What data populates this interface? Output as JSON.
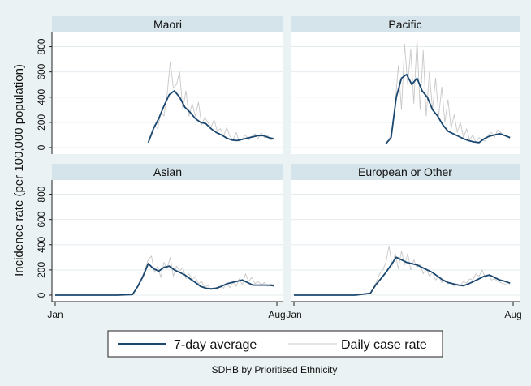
{
  "chart_data": {
    "type": "line",
    "ylabel": "Incidence rate (per 100,000 population)",
    "note": "SDHB by Prioritised Ethnicity",
    "x_ticks": [
      "Jan",
      "Aug"
    ],
    "y_ticks": [
      0,
      200,
      400,
      600,
      800
    ],
    "ylim": [
      0,
      900
    ],
    "grid": true,
    "legend": {
      "placement": "bottom",
      "entries": [
        {
          "label": "7-day average",
          "color": "#1a476f",
          "style": "thick"
        },
        {
          "label": "Daily case rate",
          "color": "#c8c8c8",
          "style": "thin"
        }
      ]
    },
    "x_unit": "day of year",
    "x_range": [
      1,
      213
    ],
    "panels": [
      {
        "title": "Maori",
        "series": [
          {
            "name": "7-day average",
            "x": [
              90,
              95,
              100,
              105,
              110,
              115,
              120,
              125,
              130,
              135,
              140,
              145,
              150,
              155,
              160,
              165,
              170,
              175,
              180,
              185,
              190,
              195,
              200,
              205,
              210
            ],
            "values": [
              40,
              150,
              230,
              330,
              420,
              450,
              400,
              320,
              280,
              230,
              200,
              190,
              150,
              120,
              100,
              75,
              60,
              55,
              65,
              75,
              85,
              95,
              95,
              80,
              70
            ]
          },
          {
            "name": "Daily case rate",
            "x": [
              90,
              93,
              96,
              99,
              102,
              105,
              108,
              111,
              114,
              117,
              120,
              123,
              126,
              129,
              132,
              135,
              138,
              141,
              144,
              147,
              150,
              153,
              156,
              159,
              162,
              165,
              168,
              171,
              174,
              177,
              180,
              183,
              186,
              189,
              192,
              195,
              198,
              201,
              204,
              207,
              210
            ],
            "values": [
              60,
              90,
              180,
              150,
              280,
              250,
              420,
              680,
              470,
              500,
              600,
              300,
              450,
              250,
              350,
              250,
              360,
              180,
              240,
              200,
              160,
              220,
              130,
              150,
              90,
              160,
              90,
              60,
              120,
              50,
              70,
              100,
              60,
              90,
              110,
              70,
              120,
              80,
              100,
              60,
              70
            ]
          }
        ]
      },
      {
        "title": "Pacific",
        "series": [
          {
            "name": "7-day average",
            "x": [
              90,
              95,
              100,
              105,
              110,
              115,
              120,
              125,
              130,
              135,
              140,
              145,
              150,
              155,
              160,
              165,
              170,
              175,
              180,
              185,
              190,
              195,
              200,
              205,
              210
            ],
            "values": [
              30,
              80,
              400,
              550,
              580,
              500,
              550,
              450,
              400,
              300,
              250,
              180,
              130,
              110,
              90,
              70,
              55,
              45,
              40,
              70,
              90,
              100,
              110,
              95,
              80
            ]
          },
          {
            "name": "Daily case rate",
            "x": [
              90,
              93,
              96,
              99,
              102,
              105,
              108,
              111,
              114,
              117,
              120,
              123,
              126,
              129,
              132,
              135,
              138,
              141,
              144,
              147,
              150,
              153,
              156,
              159,
              162,
              165,
              168,
              171,
              174,
              177,
              180,
              183,
              186,
              189,
              192,
              195,
              198,
              201,
              204,
              207,
              210
            ],
            "values": [
              40,
              60,
              150,
              350,
              650,
              300,
              820,
              500,
              780,
              350,
              860,
              300,
              770,
              250,
              600,
              300,
              550,
              250,
              480,
              200,
              380,
              150,
              260,
              120,
              200,
              80,
              150,
              60,
              100,
              40,
              80,
              60,
              50,
              100,
              120,
              80,
              140,
              120,
              100,
              90,
              70
            ]
          }
        ]
      },
      {
        "title": "Asian",
        "series": [
          {
            "name": "7-day average",
            "x": [
              1,
              30,
              60,
              75,
              80,
              85,
              90,
              95,
              100,
              105,
              110,
              115,
              120,
              125,
              130,
              135,
              140,
              145,
              150,
              155,
              160,
              165,
              170,
              175,
              180,
              185,
              190,
              195,
              200,
              205,
              210
            ],
            "values": [
              0,
              0,
              0,
              5,
              70,
              150,
              250,
              210,
              190,
              220,
              230,
              200,
              180,
              160,
              130,
              100,
              70,
              55,
              50,
              55,
              70,
              90,
              100,
              110,
              120,
              100,
              80,
              80,
              80,
              80,
              75
            ]
          },
          {
            "name": "Daily case rate",
            "x": [
              75,
              78,
              81,
              84,
              87,
              90,
              93,
              96,
              99,
              102,
              105,
              108,
              111,
              114,
              117,
              120,
              123,
              126,
              129,
              132,
              135,
              138,
              141,
              144,
              147,
              150,
              153,
              156,
              159,
              162,
              165,
              168,
              171,
              174,
              177,
              180,
              183,
              186,
              189,
              192,
              195,
              198,
              201,
              204,
              207,
              210
            ],
            "values": [
              5,
              40,
              90,
              140,
              210,
              280,
              310,
              180,
              230,
              140,
              260,
              210,
              300,
              150,
              230,
              190,
              220,
              130,
              170,
              120,
              150,
              90,
              110,
              60,
              80,
              40,
              60,
              45,
              70,
              55,
              90,
              60,
              100,
              70,
              130,
              80,
              170,
              110,
              140,
              90,
              110,
              80,
              100,
              70,
              90,
              80
            ]
          }
        ]
      },
      {
        "title": "European or Other",
        "series": [
          {
            "name": "7-day average",
            "x": [
              1,
              30,
              60,
              75,
              80,
              85,
              90,
              95,
              100,
              105,
              110,
              115,
              120,
              125,
              130,
              135,
              140,
              145,
              150,
              155,
              160,
              165,
              170,
              175,
              180,
              185,
              190,
              195,
              200,
              205,
              210
            ],
            "values": [
              0,
              0,
              0,
              15,
              80,
              130,
              180,
              240,
              300,
              280,
              260,
              250,
              240,
              220,
              200,
              180,
              150,
              120,
              100,
              90,
              80,
              75,
              90,
              110,
              130,
              150,
              160,
              140,
              120,
              110,
              95
            ]
          },
          {
            "name": "Daily case rate",
            "x": [
              75,
              78,
              81,
              84,
              87,
              90,
              93,
              96,
              99,
              102,
              105,
              108,
              111,
              114,
              117,
              120,
              123,
              126,
              129,
              132,
              135,
              138,
              141,
              144,
              147,
              150,
              153,
              156,
              159,
              162,
              165,
              168,
              171,
              174,
              177,
              180,
              183,
              186,
              189,
              192,
              195,
              198,
              201,
              204,
              207,
              210
            ],
            "values": [
              20,
              60,
              110,
              170,
              200,
              260,
              390,
              230,
              330,
              210,
              350,
              240,
              330,
              200,
              280,
              220,
              250,
              170,
              210,
              150,
              180,
              120,
              150,
              100,
              120,
              90,
              100,
              70,
              90,
              75,
              110,
              95,
              130,
              120,
              170,
              150,
              200,
              140,
              160,
              120,
              130,
              110,
              100,
              90,
              80,
              85
            ]
          }
        ]
      }
    ]
  }
}
